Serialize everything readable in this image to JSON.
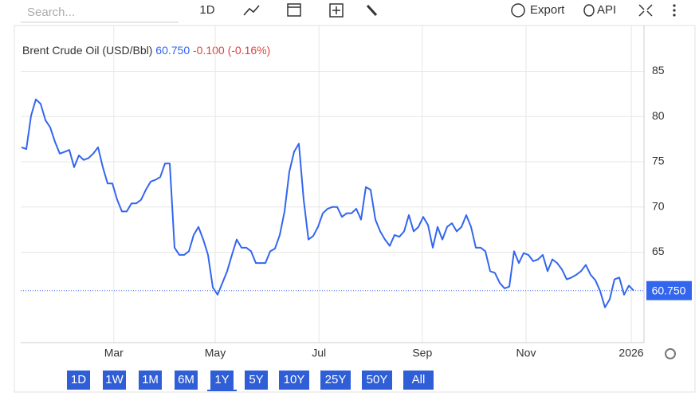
{
  "toolbar": {
    "search_placeholder": "Search...",
    "interval": "1D",
    "export": "Export",
    "api": "API"
  },
  "chart_data": {
    "type": "line",
    "title": "Brent Crude Oil (USD/Bbl)",
    "last_value": {
      "value": 60.75,
      "label": "60.750"
    },
    "change": "-0.100 (-0.16%)",
    "color": "#3366ee",
    "grid": true,
    "values": [
      76.6,
      76.4,
      80.1,
      81.9,
      81.4,
      79.6,
      78.8,
      77.2,
      75.9,
      76.1,
      76.3,
      74.4,
      75.7,
      75.2,
      75.4,
      75.9,
      76.6,
      74.4,
      72.6,
      72.6,
      70.8,
      69.5,
      69.5,
      70.4,
      70.4,
      70.8,
      71.9,
      72.8,
      73.0,
      73.3,
      74.8,
      74.8,
      65.5,
      64.7,
      64.7,
      65.1,
      66.9,
      67.8,
      66.4,
      64.7,
      61.1,
      60.3,
      61.6,
      62.9,
      64.7,
      66.4,
      65.5,
      65.5,
      65.1,
      63.8,
      63.8,
      63.8,
      65.1,
      65.4,
      66.9,
      69.5,
      73.9,
      76.1,
      77.0,
      70.8,
      66.4,
      66.8,
      67.8,
      69.3,
      69.8,
      70.0,
      70.0,
      68.9,
      69.3,
      69.3,
      69.8,
      68.6,
      72.2,
      71.9,
      68.6,
      67.3,
      66.4,
      65.7,
      66.9,
      66.7,
      67.3,
      69.1,
      67.3,
      67.8,
      68.9,
      68.0,
      65.5,
      67.8,
      66.4,
      67.8,
      68.2,
      67.3,
      67.8,
      69.1,
      67.8,
      65.5,
      65.5,
      65.1,
      62.9,
      62.7,
      61.6,
      61.0,
      61.2,
      65.1,
      63.8,
      64.9,
      64.7,
      64.0,
      64.2,
      64.7,
      62.9,
      64.2,
      63.8,
      63.1,
      62.0,
      62.2,
      62.5,
      62.9,
      63.6,
      62.5,
      61.9,
      60.7,
      58.9,
      59.8,
      62.0,
      62.2,
      60.3,
      61.3,
      60.75
    ],
    "xlim": [
      0,
      128
    ],
    "xticks": [
      {
        "value": 19.3,
        "label": "Mar"
      },
      {
        "value": 40.5,
        "label": "May"
      },
      {
        "value": 62.2,
        "label": "Jul"
      },
      {
        "value": 83.8,
        "label": "Sep"
      },
      {
        "value": 105.5,
        "label": "Nov"
      },
      {
        "value": 127.5,
        "label": "2026"
      }
    ],
    "ylim": [
      55,
      89.8
    ],
    "yticks": [
      65,
      70,
      75,
      80,
      85
    ],
    "ranges": [
      "1D",
      "1W",
      "1M",
      "6M",
      "1Y",
      "5Y",
      "10Y",
      "25Y",
      "50Y",
      "All"
    ],
    "selected_range": 4
  }
}
